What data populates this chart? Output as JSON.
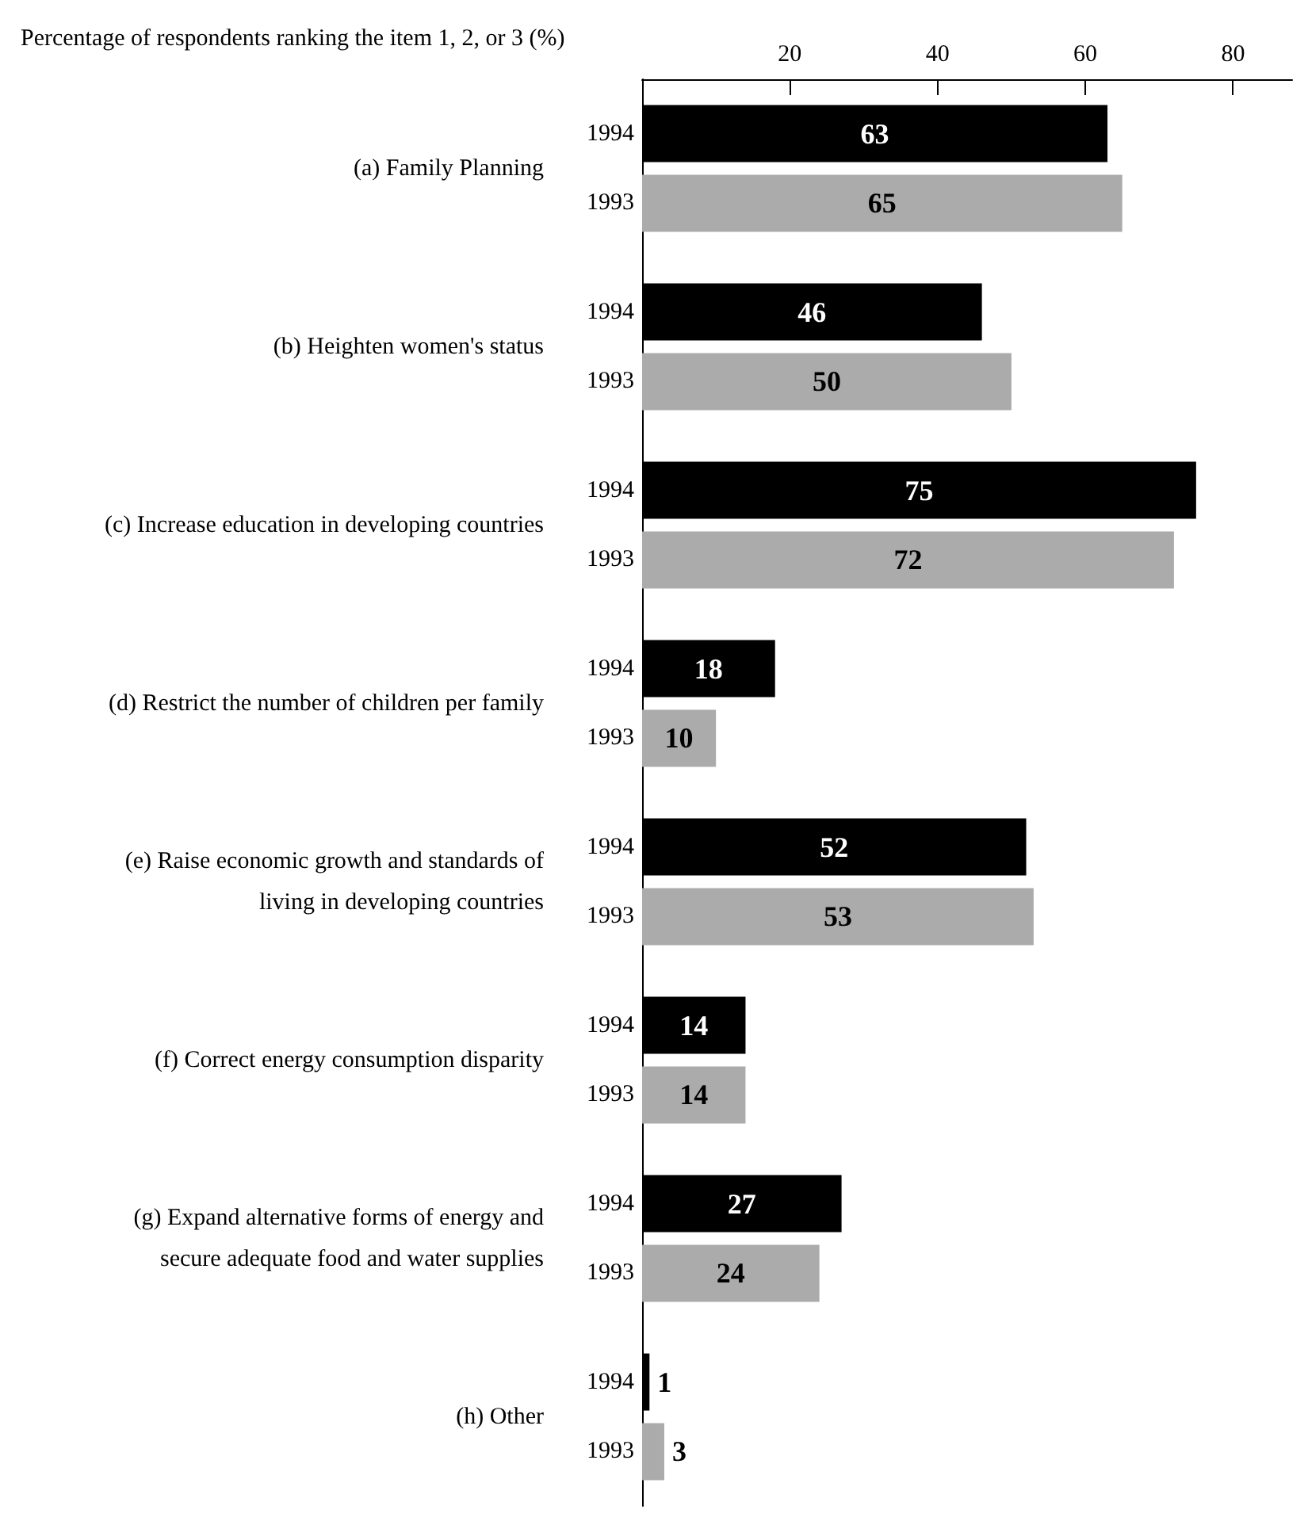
{
  "chart_data": {
    "type": "bar",
    "orientation": "horizontal",
    "xlabel": "Percentage of respondents ranking the item 1, 2, or 3 (%)",
    "categories": [
      "(a) Family Planning",
      "(b) Heighten women's status",
      "(c) Increase education in developing countries",
      "(d) Restrict the number of children per family",
      "(e) Raise economic growth and standards of\nliving in developing countries",
      "(f) Correct energy consumption disparity",
      "(g) Expand alternative forms of energy and\nsecure adequate food and water supplies",
      "(h) Other"
    ],
    "series": [
      {
        "name": "1994",
        "color": "#000000",
        "values": [
          63,
          46,
          75,
          18,
          52,
          14,
          27,
          1
        ]
      },
      {
        "name": "1993",
        "color": "#ababab",
        "values": [
          65,
          50,
          72,
          10,
          53,
          14,
          24,
          3
        ]
      }
    ],
    "xlim": [
      0,
      88
    ],
    "xticks": [
      20,
      40,
      60,
      80
    ],
    "data_labels": true,
    "grid": false,
    "legend": false
  }
}
